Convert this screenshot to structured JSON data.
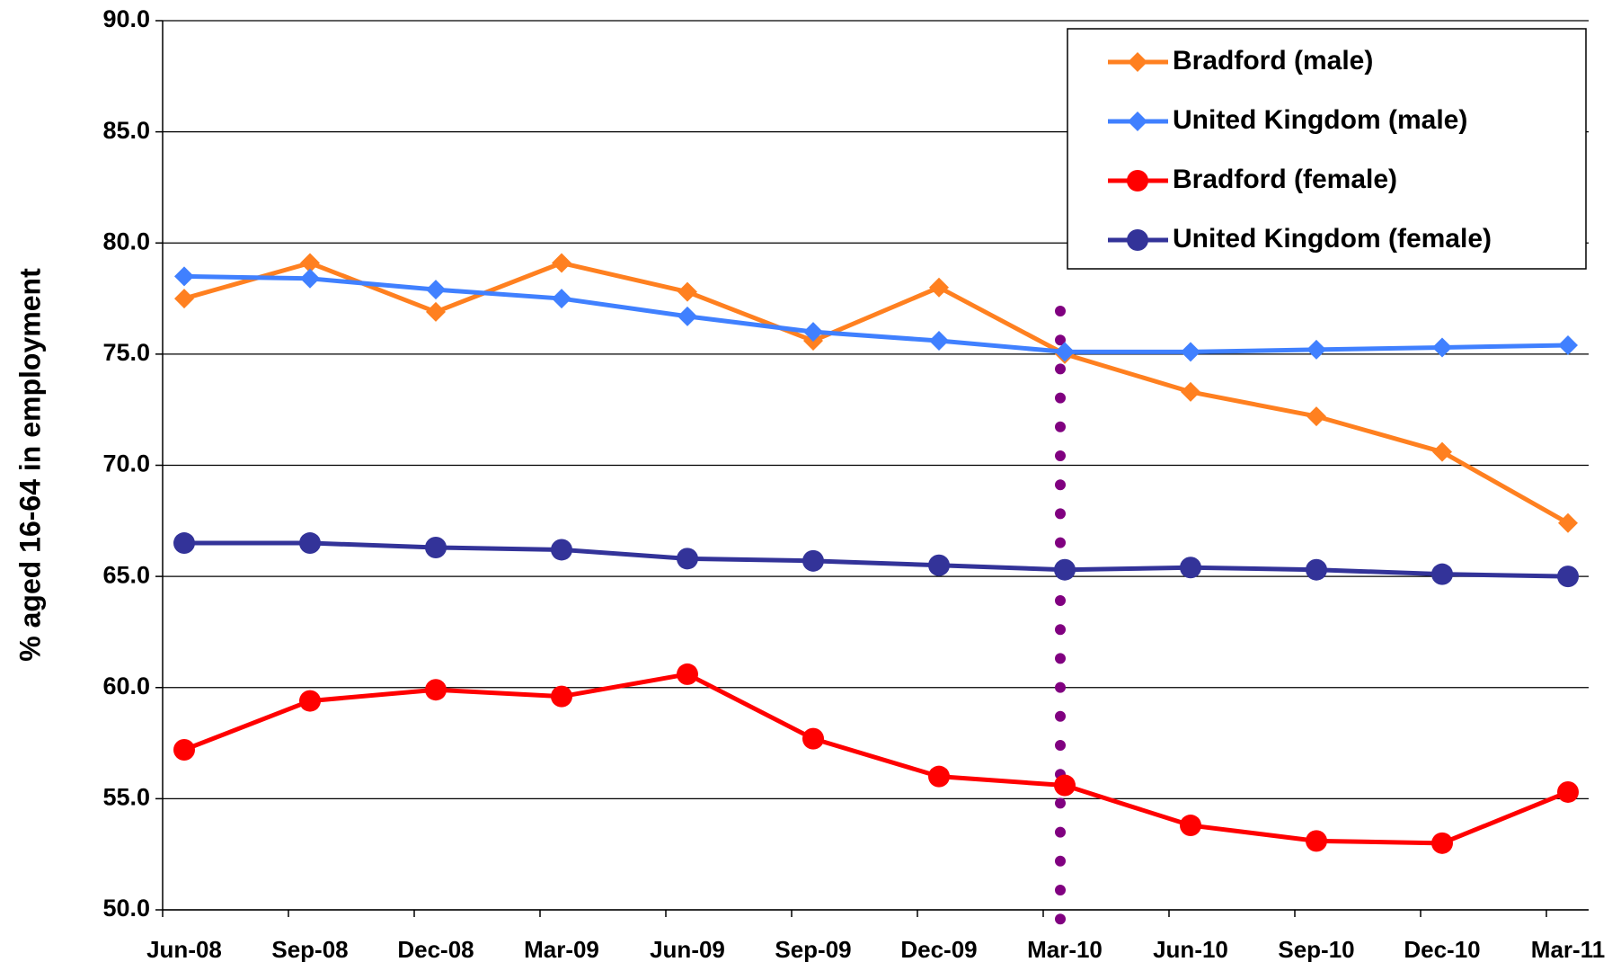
{
  "chart_data": {
    "type": "line",
    "y_label": "% aged 16-64 in employment",
    "categories": [
      "Jun-08",
      "Sep-08",
      "Dec-08",
      "Mar-09",
      "Jun-09",
      "Sep-09",
      "Dec-09",
      "Mar-10",
      "Jun-10",
      "Sep-10",
      "Dec-10",
      "Mar-11"
    ],
    "series": [
      {
        "name": "Bradford (male)",
        "color": "#ff8020",
        "marker": "diamond",
        "values": [
          77.5,
          79.1,
          76.9,
          79.1,
          77.8,
          75.6,
          78.0,
          75.0,
          73.3,
          72.2,
          70.6,
          67.4
        ]
      },
      {
        "name": "United Kingdom (male)",
        "color": "#4080ff",
        "marker": "diamond",
        "values": [
          78.5,
          78.4,
          77.9,
          77.5,
          76.7,
          76.0,
          75.6,
          75.1,
          75.1,
          75.2,
          75.3,
          75.4
        ]
      },
      {
        "name": "Bradford (female)",
        "color": "#ff0000",
        "marker": "circle",
        "values": [
          57.2,
          59.4,
          59.9,
          59.6,
          60.6,
          57.7,
          56.0,
          55.6,
          53.8,
          53.1,
          53.0,
          55.3
        ]
      },
      {
        "name": "United Kingdom (female)",
        "color": "#333399",
        "marker": "circle",
        "values": [
          66.5,
          66.5,
          66.3,
          66.2,
          65.8,
          65.7,
          65.5,
          65.3,
          65.4,
          65.3,
          65.1,
          65.0
        ]
      }
    ],
    "ylim": [
      50,
      90
    ],
    "yticks": [
      {
        "value": 50,
        "label": "50.0"
      },
      {
        "value": 55,
        "label": "55.0"
      },
      {
        "value": 60,
        "label": "60.0"
      },
      {
        "value": 65,
        "label": "65.0"
      },
      {
        "value": 70,
        "label": "70.0"
      },
      {
        "value": 75,
        "label": "75.0"
      },
      {
        "value": 80,
        "label": "80.0"
      },
      {
        "value": 85,
        "label": "85.0"
      },
      {
        "value": 90,
        "label": "90.0"
      }
    ],
    "grid": true,
    "legend": "top-right",
    "vline": {
      "x": "Mar-10",
      "color": "#800080",
      "style": "dotted"
    }
  }
}
